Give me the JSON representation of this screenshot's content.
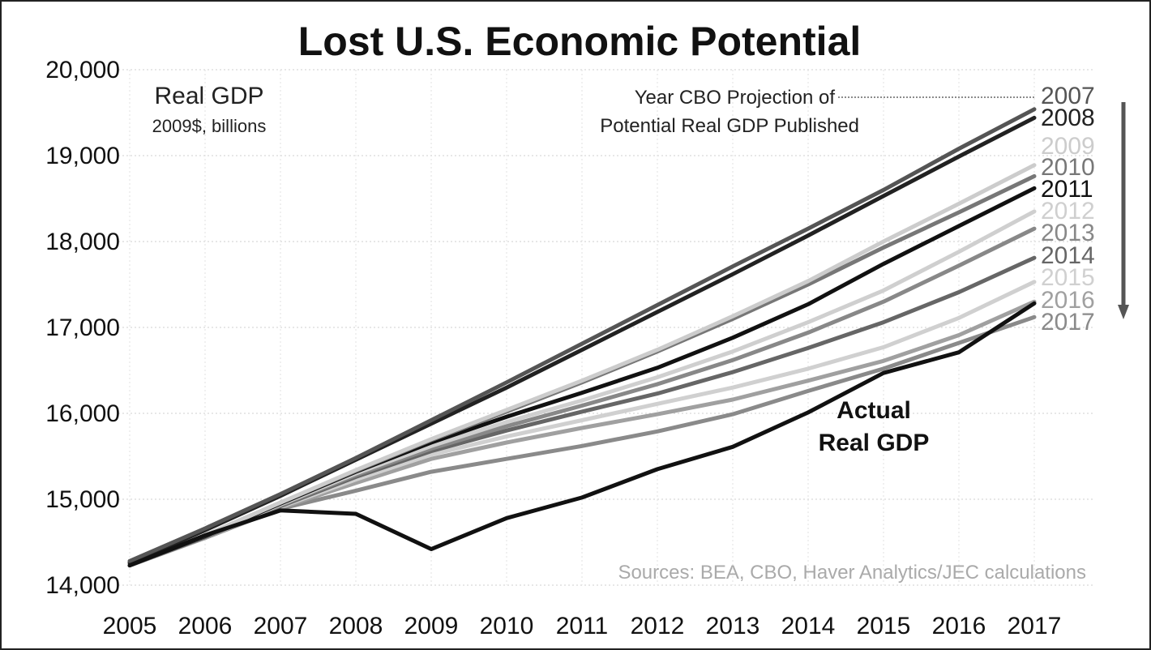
{
  "chart_data": {
    "type": "line",
    "title": "Lost U.S. Economic Potential",
    "ylabel": "Real GDP",
    "ylabel_units": "2009$, billions",
    "legend_title_line1": "Year CBO Projection of",
    "legend_title_line2": "Potential Real GDP Published",
    "actual_label_line1": "Actual",
    "actual_label_line2": "Real GDP",
    "source": "Sources: BEA, CBO, Haver Analytics/JEC calculations",
    "x": [
      "2005",
      "2006",
      "2007",
      "2008",
      "2009",
      "2010",
      "2011",
      "2012",
      "2013",
      "2014",
      "2015",
      "2016",
      "2017"
    ],
    "ylim": [
      14000,
      20000
    ],
    "yticks": [
      "14,000",
      "15,000",
      "16,000",
      "17,000",
      "18,000",
      "19,000",
      "20,000"
    ],
    "ytick_values": [
      14000,
      15000,
      16000,
      17000,
      18000,
      19000,
      20000
    ],
    "grid": true,
    "series": [
      {
        "name": "2007",
        "color": "#555555",
        "values": [
          14280,
          14660,
          15060,
          15480,
          15920,
          16360,
          16810,
          17260,
          17710,
          18150,
          18600,
          19080,
          19540
        ]
      },
      {
        "name": "2008",
        "color": "#222222",
        "values": [
          14260,
          14640,
          15040,
          15460,
          15880,
          16300,
          16740,
          17180,
          17620,
          18070,
          18530,
          18990,
          19440
        ]
      },
      {
        "name": "2009",
        "color": "#cccccc",
        "values": [
          14240,
          14580,
          14960,
          15340,
          15700,
          16040,
          16380,
          16740,
          17130,
          17540,
          18000,
          18440,
          18890
        ]
      },
      {
        "name": "2010",
        "color": "#777777",
        "values": [
          14240,
          14580,
          14960,
          15330,
          15690,
          16020,
          16360,
          16720,
          17100,
          17500,
          17930,
          18340,
          18760
        ]
      },
      {
        "name": "2011",
        "color": "#111111",
        "values": [
          14230,
          14570,
          14950,
          15320,
          15660,
          15960,
          16240,
          16530,
          16880,
          17270,
          17740,
          18180,
          18620
        ]
      },
      {
        "name": "2012",
        "color": "#cfcfcf",
        "values": [
          14230,
          14570,
          14940,
          15300,
          15620,
          15900,
          16150,
          16420,
          16720,
          17060,
          17430,
          17880,
          18350
        ]
      },
      {
        "name": "2013",
        "color": "#888888",
        "values": [
          14230,
          14570,
          14930,
          15280,
          15590,
          15850,
          16090,
          16340,
          16620,
          16940,
          17300,
          17720,
          18150
        ]
      },
      {
        "name": "2014",
        "color": "#666666",
        "values": [
          14230,
          14560,
          14920,
          15260,
          15560,
          15800,
          16020,
          16230,
          16480,
          16760,
          17060,
          17410,
          17810
        ]
      },
      {
        "name": "2015",
        "color": "#d0d0d0",
        "values": [
          14230,
          14560,
          14910,
          15230,
          15520,
          15730,
          15920,
          16110,
          16300,
          16520,
          16770,
          17110,
          17530
        ]
      },
      {
        "name": "2016",
        "color": "#a0a0a0",
        "values": [
          14230,
          14550,
          14900,
          15190,
          15470,
          15660,
          15830,
          15990,
          16160,
          16380,
          16610,
          16910,
          17300
        ]
      },
      {
        "name": "2017",
        "color": "#8a8a8a",
        "values": [
          14230,
          14550,
          14890,
          15100,
          15320,
          15470,
          15620,
          15790,
          15990,
          16260,
          16520,
          16820,
          17120
        ]
      }
    ],
    "actual": {
      "name": "Actual Real GDP",
      "color": "#111111",
      "values": [
        14230,
        14580,
        14870,
        14830,
        14420,
        14780,
        15020,
        15350,
        15610,
        16010,
        16470,
        16710,
        17280
      ]
    }
  }
}
